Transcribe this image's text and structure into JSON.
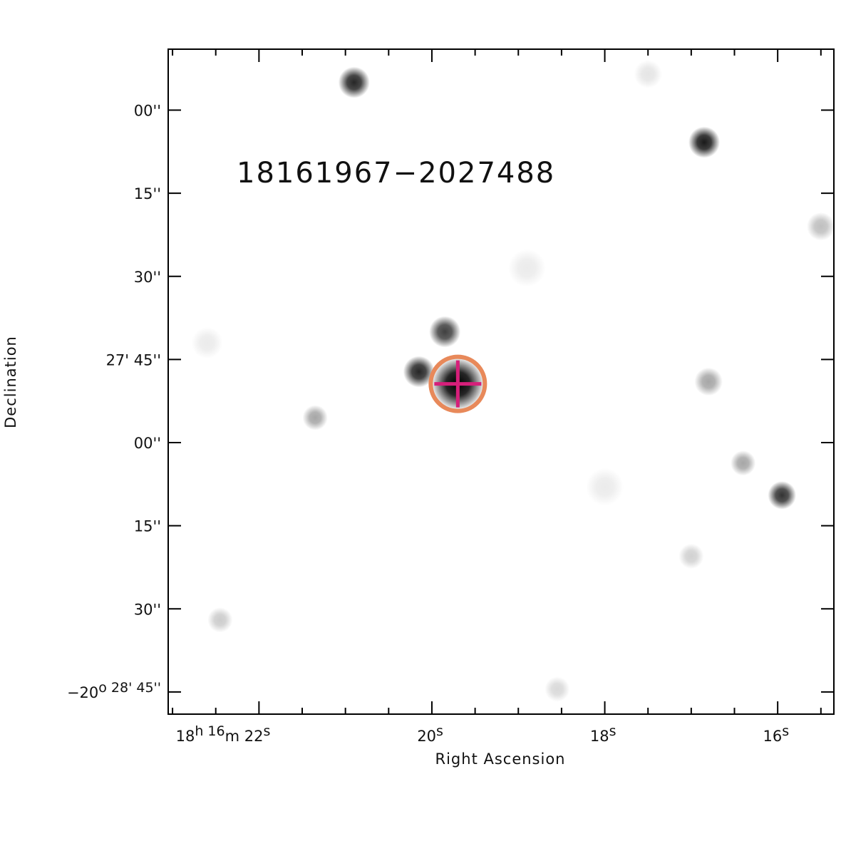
{
  "chart_data": {
    "type": "scatter",
    "title": "",
    "xlabel": "Right Ascension",
    "ylabel": "Declination",
    "object_label": "18161967−2027488",
    "colors": {
      "object_label": "#1f5a3f",
      "marker_circle": "#e8895a",
      "marker_cross": "#d61f7a",
      "frame": "#000000"
    },
    "x_ticks": [
      {
        "ra_sec": 22,
        "label": "18^h 16^m 22^s"
      },
      {
        "ra_sec": 20,
        "label": "20^s"
      },
      {
        "ra_sec": 18,
        "label": "18^s"
      },
      {
        "ra_sec": 16,
        "label": "16^s"
      }
    ],
    "y_ticks": [
      {
        "dec_arcsec": 2820,
        "label": "00''"
      },
      {
        "dec_arcsec": 2835,
        "label": "15''"
      },
      {
        "dec_arcsec": 2850,
        "label": "30''"
      },
      {
        "dec_arcsec": 2865,
        "label": "27' 45''"
      },
      {
        "dec_arcsec": 2880,
        "label": "00''"
      },
      {
        "dec_arcsec": 2895,
        "label": "15''"
      },
      {
        "dec_arcsec": 2910,
        "label": "30''"
      },
      {
        "dec_arcsec": 2925,
        "label": "−20^o 28' 45''"
      }
    ],
    "xlim_ra_sec": [
      23.05,
      15.35
    ],
    "ylim_dec_arcsec": [
      2809,
      2929
    ],
    "target": {
      "ra_sec": 19.7,
      "dec_arcsec": 2869.4,
      "marker": "circle-with-cross"
    },
    "sources": [
      {
        "ra_sec": 20.9,
        "dec_arcsec": 2815.0,
        "brightness": 0.85,
        "size": 1.0
      },
      {
        "ra_sec": 16.85,
        "dec_arcsec": 2825.8,
        "brightness": 0.9,
        "size": 1.0
      },
      {
        "ra_sec": 19.85,
        "dec_arcsec": 2860.0,
        "brightness": 0.75,
        "size": 1.0
      },
      {
        "ra_sec": 20.15,
        "dec_arcsec": 2867.2,
        "brightness": 0.85,
        "size": 1.0
      },
      {
        "ra_sec": 19.7,
        "dec_arcsec": 2869.4,
        "brightness": 1.0,
        "size": 1.7
      },
      {
        "ra_sec": 16.8,
        "dec_arcsec": 2869.0,
        "brightness": 0.35,
        "size": 0.9
      },
      {
        "ra_sec": 21.35,
        "dec_arcsec": 2875.5,
        "brightness": 0.35,
        "size": 0.8
      },
      {
        "ra_sec": 16.4,
        "dec_arcsec": 2883.7,
        "brightness": 0.35,
        "size": 0.8
      },
      {
        "ra_sec": 15.95,
        "dec_arcsec": 2889.5,
        "brightness": 0.8,
        "size": 0.9
      },
      {
        "ra_sec": 15.5,
        "dec_arcsec": 2841.0,
        "brightness": 0.25,
        "size": 0.9
      },
      {
        "ra_sec": 17.0,
        "dec_arcsec": 2900.5,
        "brightness": 0.18,
        "size": 0.8
      },
      {
        "ra_sec": 22.45,
        "dec_arcsec": 2912.0,
        "brightness": 0.2,
        "size": 0.8
      },
      {
        "ra_sec": 18.55,
        "dec_arcsec": 2924.5,
        "brightness": 0.15,
        "size": 0.8
      },
      {
        "ra_sec": 22.6,
        "dec_arcsec": 2862.0,
        "brightness": 0.08,
        "size": 1.0
      },
      {
        "ra_sec": 17.5,
        "dec_arcsec": 2813.5,
        "brightness": 0.1,
        "size": 0.9
      },
      {
        "ra_sec": 18.9,
        "dec_arcsec": 2848.5,
        "brightness": 0.08,
        "size": 1.2
      },
      {
        "ra_sec": 18.0,
        "dec_arcsec": 2888.0,
        "brightness": 0.08,
        "size": 1.2
      }
    ]
  }
}
